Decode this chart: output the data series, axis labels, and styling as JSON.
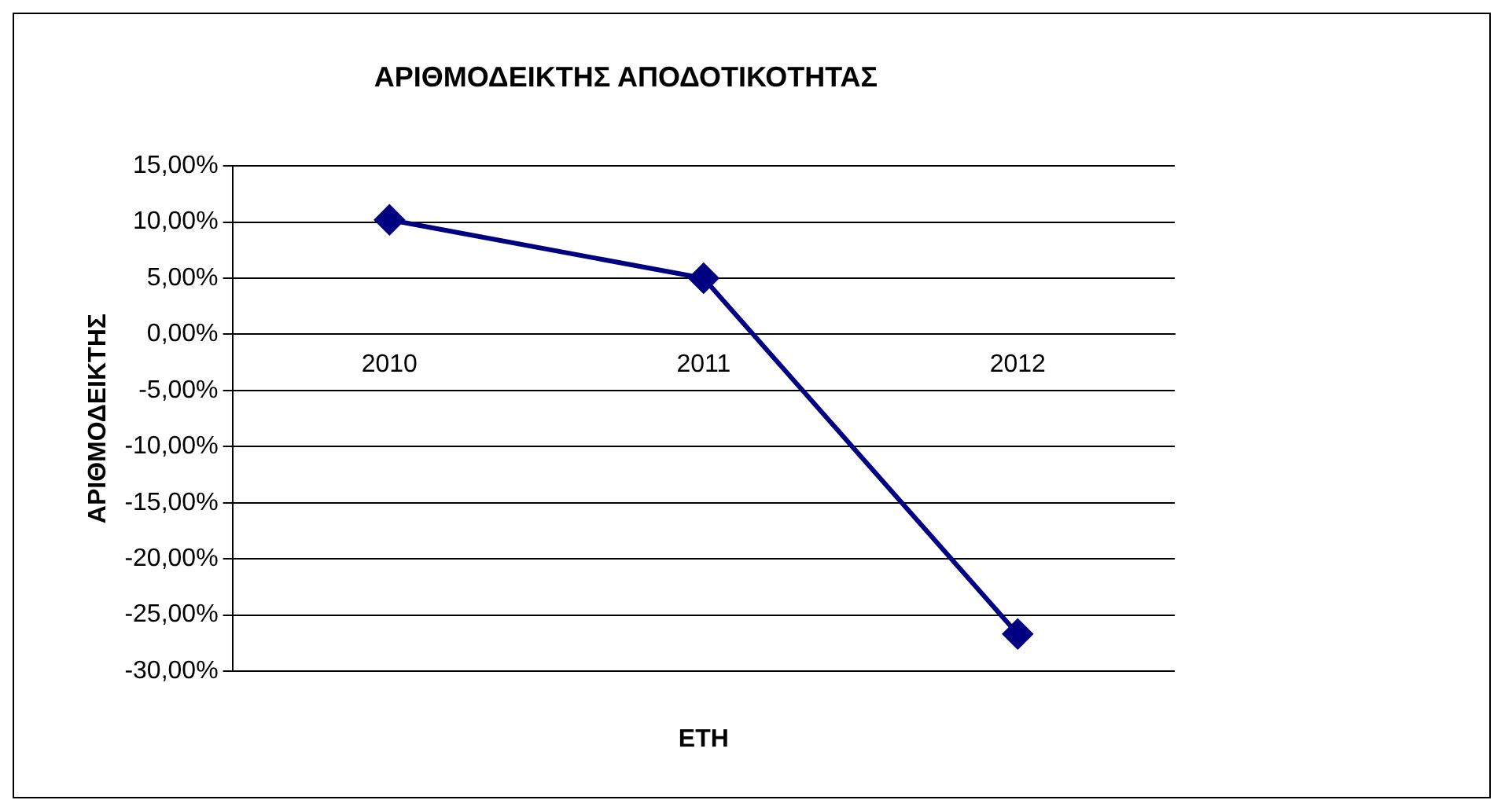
{
  "chart_data": {
    "type": "line",
    "title": "ΑΡΙΘΜΟΔΕΙΚΤΗΣ ΑΠΟΔΟΤΙΚΟΤΗΤΑΣ",
    "xlabel": "ΕΤΗ",
    "ylabel": "ΑΡΙΘΜΟΔΕΙΚΤΗΣ",
    "categories": [
      "2010",
      "2011",
      "2012"
    ],
    "series": [
      {
        "color": "#000080",
        "values": [
          10.2,
          5.0,
          -26.7
        ]
      }
    ],
    "ylim": [
      -30,
      15
    ],
    "yticks": [
      {
        "value": -30,
        "label": "-30,00%"
      },
      {
        "value": -25,
        "label": "-25,00%"
      },
      {
        "value": -20,
        "label": "-20,00%"
      },
      {
        "value": -15,
        "label": "-15,00%"
      },
      {
        "value": -10,
        "label": "-10,00%"
      },
      {
        "value": -5,
        "label": "-5,00%"
      },
      {
        "value": 0,
        "label": "0,00%"
      },
      {
        "value": 5,
        "label": "5,00%"
      },
      {
        "value": 10,
        "label": "10,00%"
      },
      {
        "value": 15,
        "label": "15,00%"
      }
    ],
    "grid": "y",
    "marker": "diamond",
    "line_style": "solid"
  }
}
